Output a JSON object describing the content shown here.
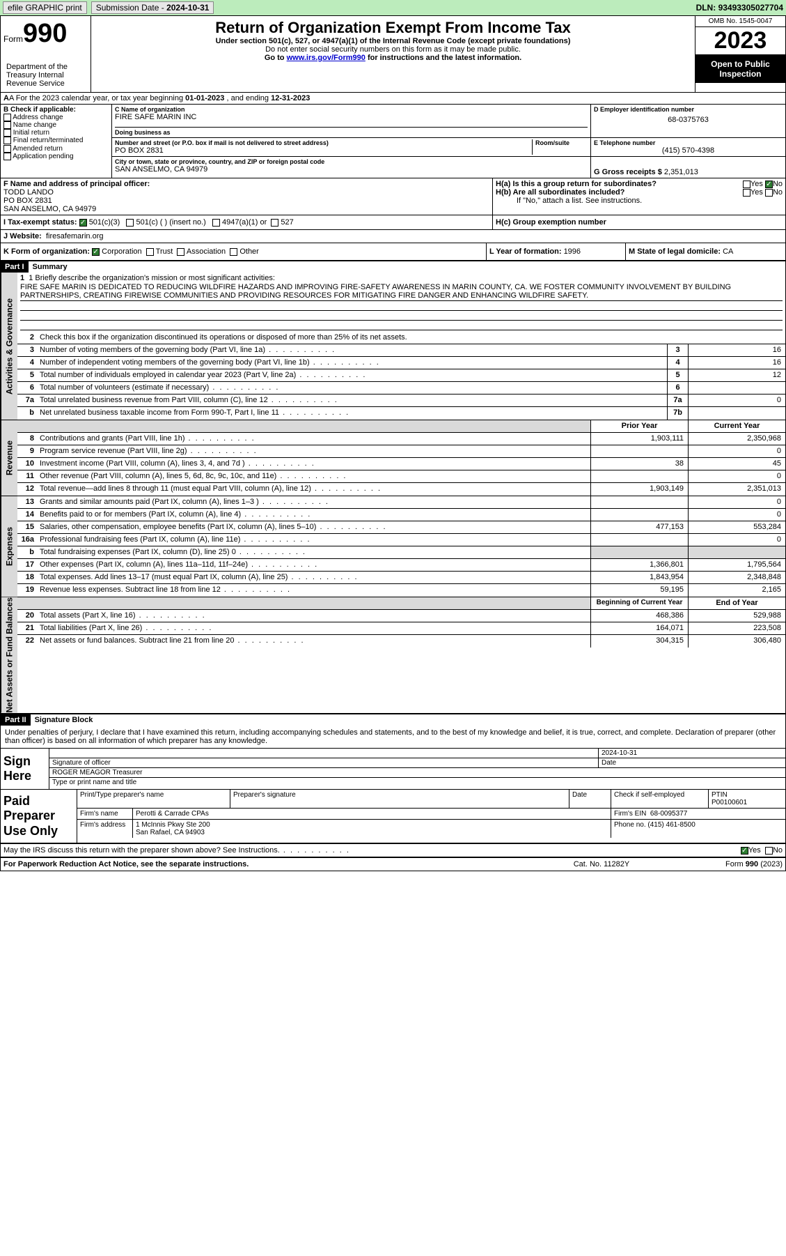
{
  "topbar": {
    "efile": "efile GRAPHIC print",
    "subdate_lbl": "Submission Date - ",
    "subdate": "2024-10-31",
    "dln_lbl": "DLN: ",
    "dln": "93493305027704"
  },
  "header": {
    "form_word": "Form",
    "form_num": "990",
    "title": "Return of Organization Exempt From Income Tax",
    "sub1": "Under section 501(c), 527, or 4947(a)(1) of the Internal Revenue Code (except private foundations)",
    "sub2": "Do not enter social security numbers on this form as it may be made public.",
    "sub3_pre": "Go to ",
    "sub3_link": "www.irs.gov/Form990",
    "sub3_post": " for instructions and the latest information.",
    "dept": "Department of the Treasury Internal Revenue Service",
    "omb": "OMB No. 1545-0047",
    "year": "2023",
    "open": "Open to Public Inspection"
  },
  "rowA": {
    "pre": "A For the 2023 calendar year, or tax year beginning ",
    "begin": "01-01-2023",
    "mid": " , and ending ",
    "end": "12-31-2023"
  },
  "boxB": {
    "lbl": "B Check if applicable:",
    "opts": [
      "Address change",
      "Name change",
      "Initial return",
      "Final return/terminated",
      "Amended return",
      "Application pending"
    ]
  },
  "boxC": {
    "name_lbl": "C Name of organization",
    "name": "FIRE SAFE MARIN INC",
    "dba_lbl": "Doing business as",
    "addr_lbl": "Number and street (or P.O. box if mail is not delivered to street address)",
    "room_lbl": "Room/suite",
    "addr": "PO BOX 2831",
    "city_lbl": "City or town, state or province, country, and ZIP or foreign postal code",
    "city": "SAN ANSELMO, CA  94979"
  },
  "boxD": {
    "lbl": "D Employer identification number",
    "val": "68-0375763"
  },
  "boxE": {
    "lbl": "E Telephone number",
    "val": "(415) 570-4398"
  },
  "boxG": {
    "lbl": "G Gross receipts $ ",
    "val": "2,351,013"
  },
  "boxF": {
    "lbl": "F Name and address of principal officer:",
    "name": "TODD LANDO",
    "addr1": "PO BOX 2831",
    "addr2": "SAN ANSELMO, CA  94979"
  },
  "boxH": {
    "ha": "H(a)  Is this a group return for subordinates?",
    "hb": "H(b)  Are all subordinates included?",
    "hb_note": "If \"No,\" attach a list. See instructions.",
    "hc": "H(c)  Group exemption number",
    "yes": "Yes",
    "no": "No"
  },
  "boxI": {
    "lbl": "I  Tax-exempt status:",
    "c3": "501(c)(3)",
    "c": "501(c) (  ) (insert no.)",
    "a1": "4947(a)(1) or",
    "s527": "527"
  },
  "boxJ": {
    "lbl": "J  Website:",
    "val": "firesafemarin.org"
  },
  "boxK": {
    "lbl": "K Form of organization:",
    "corp": "Corporation",
    "trust": "Trust",
    "assoc": "Association",
    "other": "Other"
  },
  "boxL": {
    "lbl": "L Year of formation: ",
    "val": "1996"
  },
  "boxM": {
    "lbl": "M State of legal domicile: ",
    "val": "CA"
  },
  "part1": {
    "hdr": "Part I",
    "title": "Summary",
    "l1_lbl": "1  Briefly describe the organization's mission or most significant activities:",
    "mission": "FIRE SAFE MARIN IS DEDICATED TO REDUCING WILDFIRE HAZARDS AND IMPROVING FIRE-SAFETY AWARENESS IN MARIN COUNTY, CA. WE FOSTER COMMUNITY INVOLVEMENT BY BUILDING PARTNERSHIPS, CREATING FIREWISE COMMUNITIES AND PROVIDING RESOURCES FOR MITIGATING FIRE DANGER AND ENHANCING WILDFIRE SAFETY.",
    "l2": "Check this box      if the organization discontinued its operations or disposed of more than 25% of its net assets.",
    "side_gov": "Activities & Governance",
    "side_rev": "Revenue",
    "side_exp": "Expenses",
    "side_net": "Net Assets or Fund Balances",
    "lines_gov": [
      {
        "n": "3",
        "t": "Number of voting members of the governing body (Part VI, line 1a)",
        "box": "3",
        "v": "16"
      },
      {
        "n": "4",
        "t": "Number of independent voting members of the governing body (Part VI, line 1b)",
        "box": "4",
        "v": "16"
      },
      {
        "n": "5",
        "t": "Total number of individuals employed in calendar year 2023 (Part V, line 2a)",
        "box": "5",
        "v": "12"
      },
      {
        "n": "6",
        "t": "Total number of volunteers (estimate if necessary)",
        "box": "6",
        "v": ""
      },
      {
        "n": "7a",
        "t": "Total unrelated business revenue from Part VIII, column (C), line 12",
        "box": "7a",
        "v": "0"
      },
      {
        "n": "b",
        "t": "Net unrelated business taxable income from Form 990-T, Part I, line 11",
        "box": "7b",
        "v": ""
      }
    ],
    "col_prior": "Prior Year",
    "col_curr": "Current Year",
    "lines_rev": [
      {
        "n": "8",
        "t": "Contributions and grants (Part VIII, line 1h)",
        "p": "1,903,111",
        "c": "2,350,968"
      },
      {
        "n": "9",
        "t": "Program service revenue (Part VIII, line 2g)",
        "p": "",
        "c": "0"
      },
      {
        "n": "10",
        "t": "Investment income (Part VIII, column (A), lines 3, 4, and 7d )",
        "p": "38",
        "c": "45"
      },
      {
        "n": "11",
        "t": "Other revenue (Part VIII, column (A), lines 5, 6d, 8c, 9c, 10c, and 11e)",
        "p": "",
        "c": "0"
      },
      {
        "n": "12",
        "t": "Total revenue—add lines 8 through 11 (must equal Part VIII, column (A), line 12)",
        "p": "1,903,149",
        "c": "2,351,013"
      }
    ],
    "lines_exp": [
      {
        "n": "13",
        "t": "Grants and similar amounts paid (Part IX, column (A), lines 1–3 )",
        "p": "",
        "c": "0"
      },
      {
        "n": "14",
        "t": "Benefits paid to or for members (Part IX, column (A), line 4)",
        "p": "",
        "c": "0"
      },
      {
        "n": "15",
        "t": "Salaries, other compensation, employee benefits (Part IX, column (A), lines 5–10)",
        "p": "477,153",
        "c": "553,284"
      },
      {
        "n": "16a",
        "t": "Professional fundraising fees (Part IX, column (A), line 11e)",
        "p": "",
        "c": "0"
      },
      {
        "n": "b",
        "t": "Total fundraising expenses (Part IX, column (D), line 25) 0",
        "p": "GRAY",
        "c": "GRAY"
      },
      {
        "n": "17",
        "t": "Other expenses (Part IX, column (A), lines 11a–11d, 11f–24e)",
        "p": "1,366,801",
        "c": "1,795,564"
      },
      {
        "n": "18",
        "t": "Total expenses. Add lines 13–17 (must equal Part IX, column (A), line 25)",
        "p": "1,843,954",
        "c": "2,348,848"
      },
      {
        "n": "19",
        "t": "Revenue less expenses. Subtract line 18 from line 12",
        "p": "59,195",
        "c": "2,165"
      }
    ],
    "col_begin": "Beginning of Current Year",
    "col_end": "End of Year",
    "lines_net": [
      {
        "n": "20",
        "t": "Total assets (Part X, line 16)",
        "p": "468,386",
        "c": "529,988"
      },
      {
        "n": "21",
        "t": "Total liabilities (Part X, line 26)",
        "p": "164,071",
        "c": "223,508"
      },
      {
        "n": "22",
        "t": "Net assets or fund balances. Subtract line 21 from line 20",
        "p": "304,315",
        "c": "306,480"
      }
    ]
  },
  "part2": {
    "hdr": "Part II",
    "title": "Signature Block",
    "perjury": "Under penalties of perjury, I declare that I have examined this return, including accompanying schedules and statements, and to the best of my knowledge and belief, it is true, correct, and complete. Declaration of preparer (other than officer) is based on all information of which preparer has any knowledge.",
    "sign_here": "Sign Here",
    "sig_officer": "Signature of officer",
    "sig_name": "ROGER MEAGOR  Treasurer",
    "sig_type": "Type or print name and title",
    "date_lbl": "Date",
    "date_val": "2024-10-31",
    "paid": "Paid Preparer Use Only",
    "prep_name_lbl": "Print/Type preparer's name",
    "prep_sig_lbl": "Preparer's signature",
    "check_self": "Check        if self-employed",
    "ptin_lbl": "PTIN",
    "ptin": "P00100601",
    "firm_name_lbl": "Firm's name",
    "firm_name": "Perotti & Carrade CPAs",
    "firm_ein_lbl": "Firm's EIN",
    "firm_ein": "68-0095377",
    "firm_addr_lbl": "Firm's address",
    "firm_addr1": "1 McInnis Pkwy Ste 200",
    "firm_addr2": "San Rafael, CA  94903",
    "phone_lbl": "Phone no.",
    "phone": "(415) 461-8500",
    "discuss": "May the IRS discuss this return with the preparer shown above? See Instructions.",
    "yes": "Yes",
    "no": "No"
  },
  "footer": {
    "f1": "For Paperwork Reduction Act Notice, see the separate instructions.",
    "f2": "Cat. No. 11282Y",
    "f3_pre": "Form ",
    "f3_form": "990",
    "f3_post": " (2023)"
  }
}
